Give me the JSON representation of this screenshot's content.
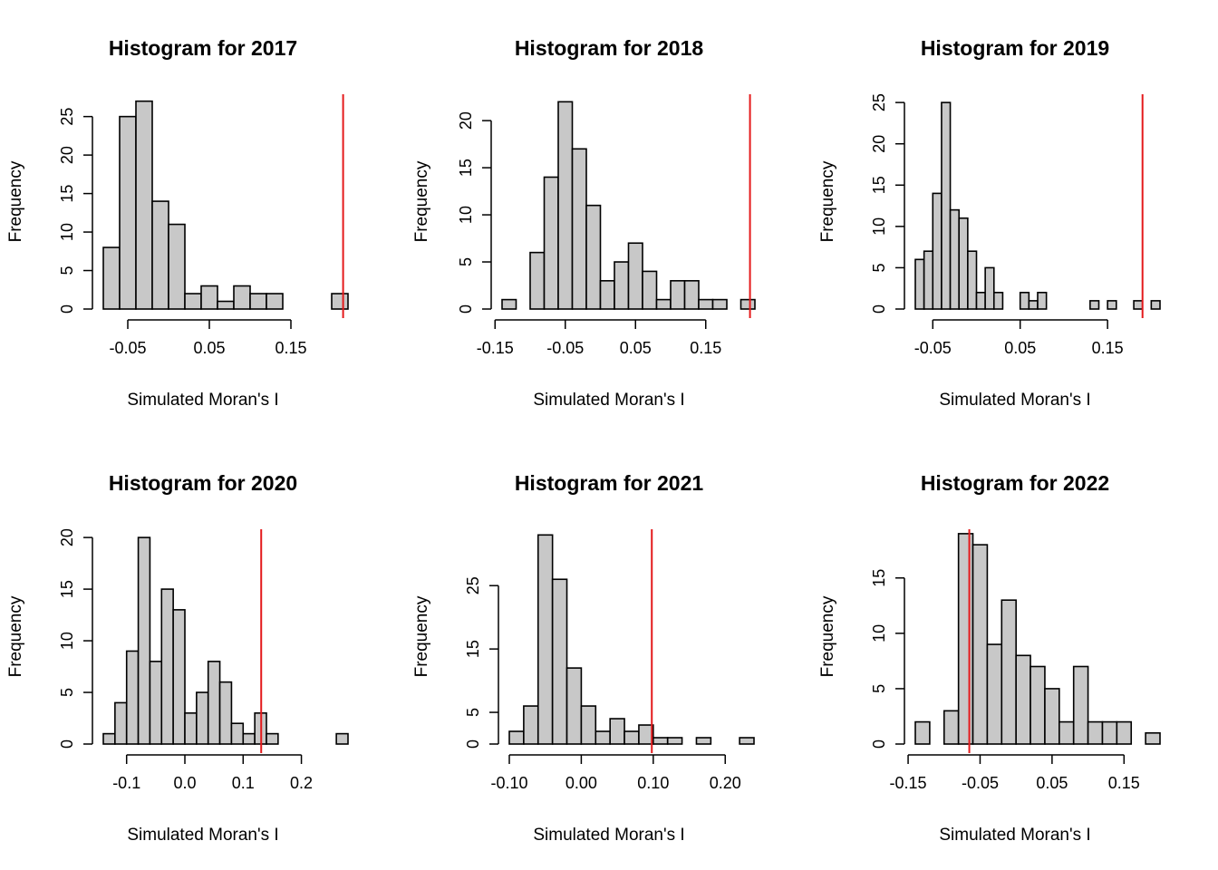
{
  "chart_data": [
    {
      "type": "bar",
      "title": "Histogram for 2017",
      "xlabel": "Simulated Moran's I",
      "ylabel": "Frequency",
      "xlim": [
        -0.08,
        0.22
      ],
      "bin_width": 0.02,
      "bin_start": -0.08,
      "values": [
        8,
        25,
        27,
        14,
        11,
        2,
        3,
        1,
        3,
        2,
        2,
        0,
        0,
        0,
        2
      ],
      "x_ticks": [
        -0.05,
        0.05,
        0.15
      ],
      "x_tick_labels": [
        "-0.05",
        "0.05",
        "0.15"
      ],
      "y_ticks": [
        0,
        5,
        10,
        15,
        20,
        25
      ],
      "y_tick_labels": [
        "0",
        "5",
        "10",
        "15",
        "20",
        "25"
      ],
      "observed_line": 0.214,
      "observed_line_color": "#e41a1c",
      "bar_color": "#c8c8c8"
    },
    {
      "type": "bar",
      "title": "Histogram for 2018",
      "xlabel": "Simulated Moran's I",
      "ylabel": "Frequency",
      "xlim": [
        -0.14,
        0.22
      ],
      "bin_width": 0.02,
      "bin_start": -0.14,
      "values": [
        1,
        0,
        6,
        14,
        22,
        17,
        11,
        3,
        5,
        7,
        4,
        1,
        3,
        3,
        1,
        1,
        0,
        1
      ],
      "x_ticks": [
        -0.15,
        -0.05,
        0.05,
        0.15
      ],
      "x_tick_labels": [
        "-0.15",
        "-0.05",
        "0.05",
        "0.15"
      ],
      "y_ticks": [
        0,
        5,
        10,
        15,
        20
      ],
      "y_tick_labels": [
        "0",
        "5",
        "10",
        "15",
        "20"
      ],
      "observed_line": 0.213,
      "observed_line_color": "#e41a1c",
      "bar_color": "#c8c8c8"
    },
    {
      "type": "bar",
      "title": "Histogram for 2019",
      "xlabel": "Simulated Moran's I",
      "ylabel": "Frequency",
      "xlim": [
        -0.07,
        0.21
      ],
      "bin_width": 0.01,
      "bin_start": -0.07,
      "values": [
        6,
        7,
        14,
        25,
        12,
        11,
        7,
        2,
        5,
        2,
        0,
        0,
        2,
        1,
        2,
        0,
        0,
        0,
        0,
        0,
        1,
        0,
        1,
        0,
        0,
        1,
        0,
        1
      ],
      "x_ticks": [
        -0.05,
        0.05,
        0.15
      ],
      "x_tick_labels": [
        "-0.05",
        "0.05",
        "0.15"
      ],
      "y_ticks": [
        0,
        5,
        10,
        15,
        20,
        25
      ],
      "y_tick_labels": [
        "0",
        "5",
        "10",
        "15",
        "20",
        "25"
      ],
      "observed_line": 0.19,
      "observed_line_color": "#e41a1c",
      "bar_color": "#c8c8c8"
    },
    {
      "type": "bar",
      "title": "Histogram for 2020",
      "xlabel": "Simulated Moran's I",
      "ylabel": "Frequency",
      "xlim": [
        -0.14,
        0.28
      ],
      "bin_width": 0.02,
      "bin_start": -0.14,
      "values": [
        1,
        4,
        9,
        20,
        8,
        15,
        13,
        3,
        5,
        8,
        6,
        2,
        1,
        3,
        1,
        0,
        0,
        0,
        0,
        0,
        1
      ],
      "x_ticks": [
        -0.1,
        0.0,
        0.1,
        0.2
      ],
      "x_tick_labels": [
        "-0.1",
        "0.0",
        "0.1",
        "0.2"
      ],
      "y_ticks": [
        0,
        5,
        10,
        15,
        20
      ],
      "y_tick_labels": [
        "0",
        "5",
        "10",
        "15",
        "20"
      ],
      "observed_line": 0.131,
      "observed_line_color": "#e41a1c",
      "bar_color": "#c8c8c8"
    },
    {
      "type": "bar",
      "title": "Histogram for 2021",
      "xlabel": "Simulated Moran's I",
      "ylabel": "Frequency",
      "xlim": [
        -0.1,
        0.24
      ],
      "bin_width": 0.02,
      "bin_start": -0.1,
      "values": [
        2,
        6,
        33,
        26,
        12,
        6,
        2,
        4,
        2,
        3,
        1,
        1,
        0,
        1,
        0,
        0,
        1
      ],
      "x_ticks": [
        -0.1,
        0.0,
        0.1,
        0.2
      ],
      "x_tick_labels": [
        "-0.10",
        "0.00",
        "0.10",
        "0.20"
      ],
      "y_ticks": [
        0,
        5,
        15,
        25
      ],
      "y_tick_labels": [
        "0",
        "5",
        "15",
        "25"
      ],
      "observed_line": 0.098,
      "observed_line_color": "#e41a1c",
      "bar_color": "#c8c8c8"
    },
    {
      "type": "bar",
      "title": "Histogram for 2022",
      "xlabel": "Simulated Moran's I",
      "ylabel": "Frequency",
      "xlim": [
        -0.14,
        0.2
      ],
      "bin_width": 0.02,
      "bin_start": -0.14,
      "values": [
        2,
        0,
        3,
        19,
        18,
        9,
        13,
        8,
        7,
        5,
        2,
        7,
        2,
        2,
        2,
        0,
        1
      ],
      "x_ticks": [
        -0.15,
        -0.05,
        0.05,
        0.15
      ],
      "x_tick_labels": [
        "-0.15",
        "-0.05",
        "0.05",
        "0.15"
      ],
      "y_ticks": [
        0,
        5,
        10,
        15
      ],
      "y_tick_labels": [
        "0",
        "5",
        "10",
        "15"
      ],
      "observed_line": -0.065,
      "observed_line_color": "#e41a1c",
      "bar_color": "#c8c8c8"
    }
  ]
}
